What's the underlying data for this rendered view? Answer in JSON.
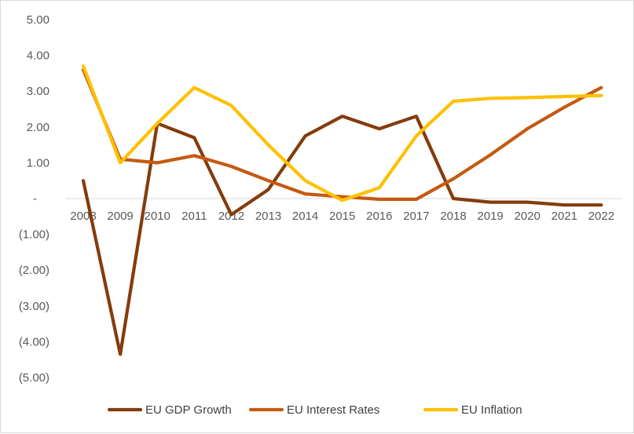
{
  "chart_data": {
    "type": "line",
    "title": "",
    "xlabel": "",
    "ylabel": "",
    "categories": [
      "2008",
      "2009",
      "2010",
      "2011",
      "2012",
      "2013",
      "2014",
      "2015",
      "2016",
      "2017",
      "2018",
      "2019",
      "2020",
      "2021",
      "2022"
    ],
    "ylim": [
      -5,
      5
    ],
    "y_ticks": [
      5,
      4,
      3,
      2,
      1,
      0,
      -1,
      -2,
      -3,
      -4,
      -5
    ],
    "y_tick_labels": [
      "5.00",
      "4.00",
      "3.00",
      "2.00",
      "1.00",
      "-",
      "(1.00)",
      "(2.00)",
      "(3.00)",
      "(4.00)",
      "(5.00)"
    ],
    "grid": false,
    "legend_position": "bottom",
    "series": [
      {
        "name": "EU GDP Growth",
        "color": "#843c0c",
        "values": [
          0.5,
          -4.35,
          2.1,
          1.7,
          -0.45,
          0.25,
          1.75,
          2.3,
          1.95,
          2.3,
          0.0,
          -0.1,
          -0.1,
          -0.18,
          -0.18
        ]
      },
      {
        "name": "EU Interest Rates",
        "color": "#c55a11",
        "values": [
          3.6,
          1.1,
          1.0,
          1.2,
          0.9,
          0.5,
          0.13,
          0.05,
          -0.02,
          -0.02,
          0.55,
          1.22,
          1.95,
          2.55,
          3.1
        ]
      },
      {
        "name": "EU Inflation",
        "color": "#ffc000",
        "values": [
          3.7,
          1.0,
          2.1,
          3.1,
          2.6,
          1.5,
          0.5,
          -0.05,
          0.3,
          1.75,
          2.72,
          2.8,
          2.82,
          2.85,
          2.88
        ]
      }
    ]
  }
}
